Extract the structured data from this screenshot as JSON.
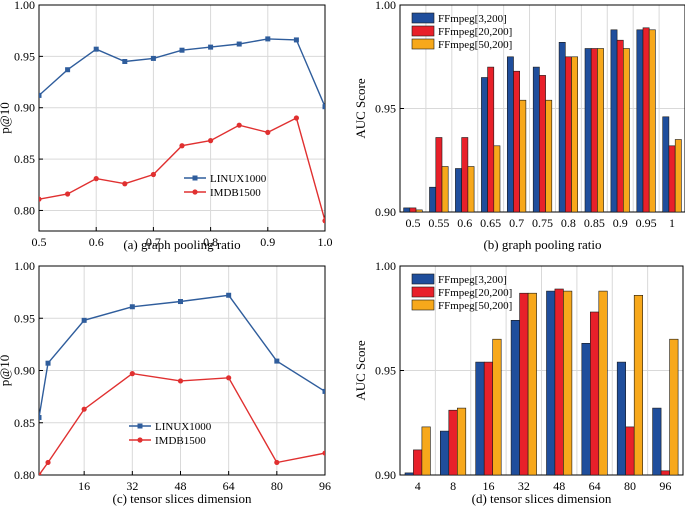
{
  "colors": {
    "blue_line": "#2f5d9c",
    "red_line": "#e03030",
    "bar_blue": "#1f4e9c",
    "bar_red": "#e8202a",
    "bar_orange": "#f7a81b",
    "grid": "#d9d9d9"
  },
  "chart_data": [
    {
      "id": "a",
      "type": "line",
      "caption": "(a) graph pooling ratio",
      "ylabel": "p@10",
      "xlabel": "",
      "x": [
        0.5,
        0.55,
        0.6,
        0.65,
        0.7,
        0.75,
        0.8,
        0.85,
        0.9,
        0.95,
        1.0
      ],
      "xticks": [
        "0.5",
        "0.6",
        "0.7",
        "0.8",
        "0.9",
        "1.0"
      ],
      "xtick_values": [
        0.5,
        0.6,
        0.7,
        0.8,
        0.9,
        1.0
      ],
      "xlim": [
        0.5,
        1.0
      ],
      "ylim": [
        0.78,
        1.0
      ],
      "yticks": [
        "0.80",
        "0.85",
        "0.90",
        "0.95",
        "1.00"
      ],
      "ytick_values": [
        0.8,
        0.85,
        0.9,
        0.95,
        1.0
      ],
      "grid": true,
      "legend": "right-middle",
      "series": [
        {
          "name": "LINUX1000",
          "marker": "square",
          "values": [
            0.912,
            0.937,
            0.957,
            0.945,
            0.948,
            0.956,
            0.959,
            0.962,
            0.967,
            0.966,
            0.901
          ]
        },
        {
          "name": "IMDB1500",
          "marker": "circle",
          "values": [
            0.811,
            0.816,
            0.831,
            0.826,
            0.835,
            0.863,
            0.868,
            0.883,
            0.876,
            0.89,
            0.79
          ]
        }
      ]
    },
    {
      "id": "b",
      "type": "bar",
      "caption": "(b) graph pooling ratio",
      "ylabel": "AUC Score",
      "xlabel": "",
      "categories": [
        "0.5",
        "0.55",
        "0.6",
        "0.65",
        "0.7",
        "0.75",
        "0.8",
        "0.85",
        "0.9",
        "0.95",
        "1"
      ],
      "ylim": [
        0.9,
        1.0
      ],
      "yticks": [
        "0.90",
        "0.95",
        "1.00"
      ],
      "ytick_values": [
        0.9,
        0.95,
        1.0
      ],
      "grid": true,
      "legend": "top-left",
      "series": [
        {
          "name": "FFmpeg[3,200]",
          "values": [
            0.902,
            0.912,
            0.921,
            0.965,
            0.975,
            0.97,
            0.982,
            0.979,
            0.988,
            0.988,
            0.946
          ]
        },
        {
          "name": "FFmpeg[20,200]",
          "values": [
            0.902,
            0.936,
            0.936,
            0.97,
            0.968,
            0.966,
            0.975,
            0.979,
            0.983,
            0.989,
            0.932
          ]
        },
        {
          "name": "FFmpeg[50,200]",
          "values": [
            0.901,
            0.922,
            0.922,
            0.932,
            0.954,
            0.954,
            0.975,
            0.979,
            0.979,
            0.988,
            0.935
          ]
        }
      ]
    },
    {
      "id": "c",
      "type": "line",
      "caption": "(c) tensor slices dimension",
      "ylabel": "p@10",
      "xlabel": "",
      "x": [
        1,
        4,
        16,
        32,
        48,
        64,
        80,
        96
      ],
      "xticks": [
        "16",
        "32",
        "48",
        "64",
        "80",
        "96"
      ],
      "xtick_values": [
        16,
        32,
        48,
        64,
        80,
        96
      ],
      "xlim": [
        1,
        96
      ],
      "ylim": [
        0.8,
        1.0
      ],
      "yticks": [
        "0.80",
        "0.85",
        "0.90",
        "0.95",
        "1.00"
      ],
      "ytick_values": [
        0.8,
        0.85,
        0.9,
        0.95,
        1.0
      ],
      "grid": true,
      "legend": "bottom-center",
      "series": [
        {
          "name": "LINUX1000",
          "marker": "square",
          "values": [
            0.855,
            0.907,
            0.948,
            0.961,
            0.966,
            0.972,
            0.909,
            0.88
          ]
        },
        {
          "name": "IMDB1500",
          "marker": "circle",
          "values": [
            0.8,
            0.812,
            0.863,
            0.897,
            0.89,
            0.893,
            0.812,
            0.821
          ]
        }
      ]
    },
    {
      "id": "d",
      "type": "bar",
      "caption": "(d) tensor slices dimension",
      "ylabel": "AUC Score",
      "xlabel": "",
      "categories": [
        "4",
        "8",
        "16",
        "32",
        "48",
        "64",
        "80",
        "96"
      ],
      "ylim": [
        0.9,
        1.0
      ],
      "yticks": [
        "0.90",
        "0.95",
        "1.00"
      ],
      "ytick_values": [
        0.9,
        0.95,
        1.0
      ],
      "grid": true,
      "legend": "top-left",
      "series": [
        {
          "name": "FFmpeg[3,200]",
          "values": [
            0.901,
            0.921,
            0.954,
            0.974,
            0.988,
            0.963,
            0.954,
            0.932
          ]
        },
        {
          "name": "FFmpeg[20,200]",
          "values": [
            0.912,
            0.931,
            0.954,
            0.987,
            0.989,
            0.978,
            0.923,
            0.902
          ]
        },
        {
          "name": "FFmpeg[50,200]",
          "values": [
            0.923,
            0.932,
            0.965,
            0.987,
            0.988,
            0.988,
            0.986,
            0.965
          ]
        }
      ]
    }
  ]
}
